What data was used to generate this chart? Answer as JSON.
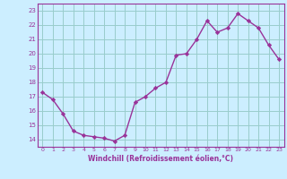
{
  "x": [
    0,
    1,
    2,
    3,
    4,
    5,
    6,
    7,
    8,
    9,
    10,
    11,
    12,
    13,
    14,
    15,
    16,
    17,
    18,
    19,
    20,
    21,
    22,
    23
  ],
  "y": [
    17.3,
    16.8,
    15.8,
    14.6,
    14.3,
    14.2,
    14.1,
    13.9,
    14.3,
    16.6,
    17.0,
    17.6,
    18.0,
    19.9,
    20.0,
    21.0,
    22.3,
    21.5,
    21.8,
    22.8,
    22.3,
    21.8,
    20.6,
    19.6
  ],
  "line_color": "#993399",
  "marker": "D",
  "marker_size": 2.2,
  "bg_color": "#cceeff",
  "grid_color": "#99cccc",
  "xlabel": "Windchill (Refroidissement éolien,°C)",
  "xlabel_color": "#993399",
  "tick_color": "#993399",
  "ylim": [
    13.5,
    23.5
  ],
  "yticks": [
    14,
    15,
    16,
    17,
    18,
    19,
    20,
    21,
    22,
    23
  ],
  "xticks": [
    0,
    1,
    2,
    3,
    4,
    5,
    6,
    7,
    8,
    9,
    10,
    11,
    12,
    13,
    14,
    15,
    16,
    17,
    18,
    19,
    20,
    21,
    22,
    23
  ],
  "linewidth": 1.0
}
